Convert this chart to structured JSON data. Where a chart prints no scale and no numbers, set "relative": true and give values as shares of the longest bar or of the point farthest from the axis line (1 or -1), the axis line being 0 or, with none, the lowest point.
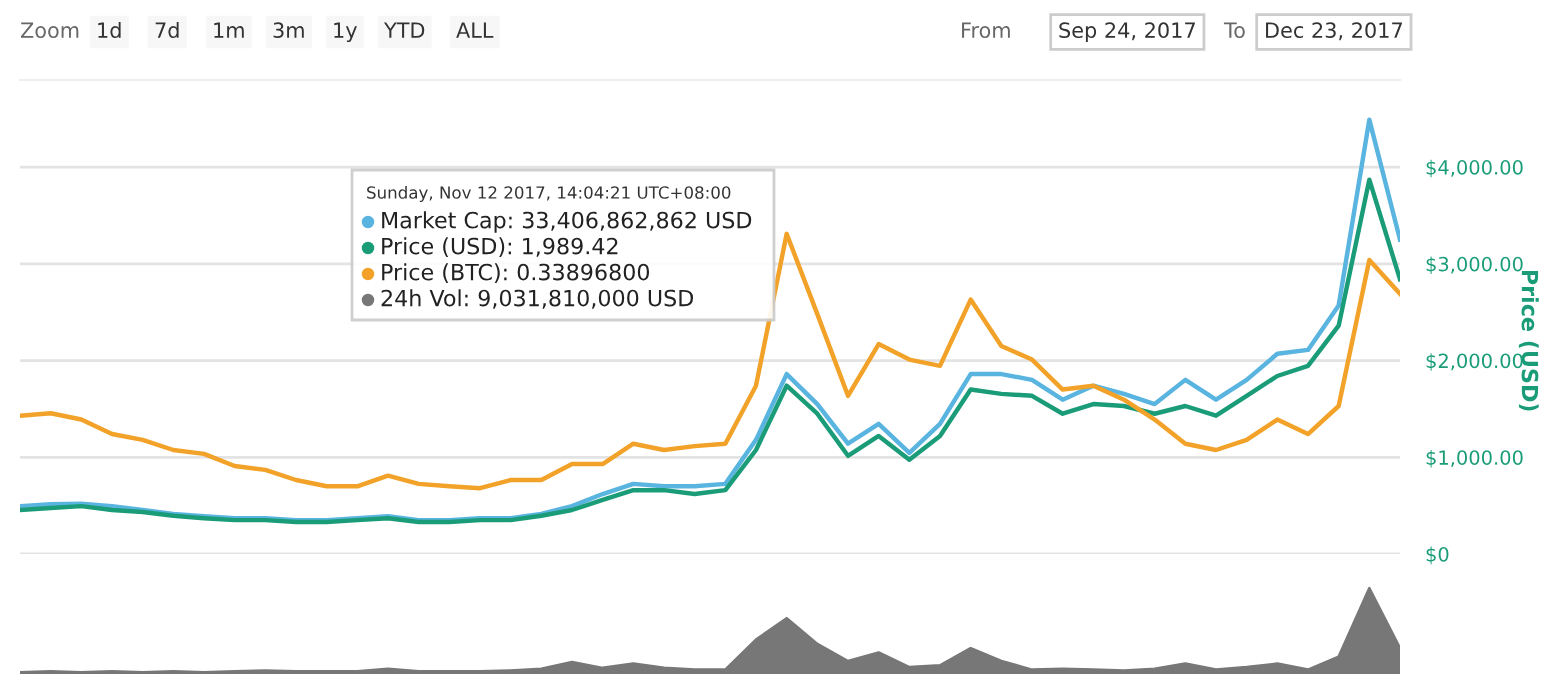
{
  "chart_data": [
    {
      "type": "line",
      "ylabel": "Price (USD)",
      "categories": [
        null,
        null,
        null,
        null,
        null,
        null,
        null,
        null,
        null,
        null,
        null,
        null,
        null,
        null,
        null,
        null,
        null,
        null,
        null,
        null,
        null,
        null,
        null,
        null,
        null,
        null,
        null,
        null,
        null,
        null,
        null,
        null,
        null,
        null,
        null,
        null,
        null,
        null,
        null,
        null,
        null,
        null,
        null,
        null,
        null,
        null
      ],
      "series": [
        {
          "color": "#5ab4e0",
          "values": [
            495,
            515,
            520,
            495,
            455,
            415,
            390,
            370,
            370,
            350,
            350,
            370,
            390,
            350,
            350,
            370,
            370,
            415,
            495,
            620,
            725,
            700,
            700,
            725,
            1180,
            1860,
            1550,
            1140,
            1345,
            1045,
            1345,
            1860,
            1860,
            1800,
            1595,
            1740,
            1655,
            1550,
            1800,
            1595,
            1800,
            2070,
            2110,
            2570,
            4490,
            3250
          ]
        },
        {
          "color": "#1a9c78",
          "values": [
            455,
            475,
            495,
            455,
            435,
            395,
            370,
            350,
            350,
            330,
            330,
            350,
            370,
            330,
            330,
            350,
            350,
            395,
            455,
            560,
            660,
            660,
            620,
            660,
            1075,
            1740,
            1450,
            1015,
            1220,
            975,
            1220,
            1700,
            1655,
            1635,
            1450,
            1550,
            1530,
            1450,
            1530,
            1430,
            1635,
            1840,
            1945,
            2360,
            3870,
            2840
          ]
        },
        {
          "color": "#f2a228",
          "values": [
            1430,
            1455,
            1390,
            1240,
            1180,
            1075,
            1035,
            910,
            870,
            765,
            700,
            700,
            810,
            725,
            700,
            680,
            765,
            765,
            930,
            930,
            1140,
            1075,
            1115,
            1140,
            1740,
            3310,
            2480,
            1635,
            2170,
            2010,
            1945,
            2630,
            2150,
            2010,
            1700,
            1740,
            1595,
            1390,
            1140,
            1075,
            1180,
            1390,
            1240,
            1530,
            3040,
            2690
          ]
        }
      ],
      "ylim": [
        0,
        4900
      ],
      "yticks": [
        {
          "value": 0,
          "label": "$0"
        },
        {
          "value": 1000,
          "label": "$1,000.00"
        },
        {
          "value": 2000,
          "label": "$2,000.00"
        },
        {
          "value": 3000,
          "label": "$3,000.00"
        },
        {
          "value": 4000,
          "label": "$4,000.00"
        }
      ],
      "grid": "y",
      "tick_labels": "y",
      "annotations": [
        "Sunday, Nov 12 2017, 14:04:21 UTC+08:00",
        "Market Cap: 33,406,862,862 USD",
        "Price (USD): 1,989.42",
        "Price (BTC): 0.33896800",
        "24h Vol: 9,031,810,000 USD",
        "Zoom",
        "1d",
        "7d",
        "1m",
        "3m",
        "1y",
        "YTD",
        "ALL",
        "From",
        "Sep 24, 2017",
        "To",
        "Dec 23, 2017"
      ]
    },
    {
      "type": "area",
      "relative": true,
      "tick_labels": false,
      "categories": [
        null,
        null,
        null,
        null,
        null,
        null,
        null,
        null,
        null,
        null,
        null,
        null,
        null,
        null,
        null,
        null,
        null,
        null,
        null,
        null,
        null,
        null,
        null,
        null,
        null,
        null,
        null,
        null,
        null,
        null,
        null,
        null,
        null,
        null,
        null,
        null,
        null,
        null,
        null,
        null,
        null,
        null,
        null,
        null,
        null,
        null
      ],
      "color": "#777777",
      "values": [
        0.02,
        0.03,
        0.02,
        0.03,
        0.02,
        0.03,
        0.02,
        0.03,
        0.04,
        0.03,
        0.03,
        0.03,
        0.06,
        0.03,
        0.03,
        0.03,
        0.04,
        0.06,
        0.14,
        0.07,
        0.12,
        0.07,
        0.05,
        0.05,
        0.4,
        0.65,
        0.35,
        0.15,
        0.25,
        0.08,
        0.1,
        0.3,
        0.15,
        0.05,
        0.06,
        0.05,
        0.04,
        0.06,
        0.12,
        0.05,
        0.08,
        0.12,
        0.05,
        0.2,
        1.0,
        0.3
      ]
    }
  ]
}
